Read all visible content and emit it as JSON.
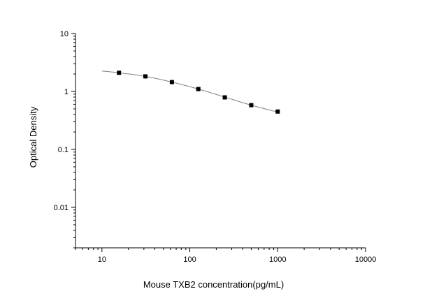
{
  "chart_data": {
    "type": "scatter",
    "title": "",
    "xlabel": "Mouse TXB2 concentration(pg/mL)",
    "ylabel": "Optical Density",
    "xscale": "log",
    "yscale": "log",
    "xlim": [
      5,
      10000
    ],
    "ylim": [
      0.002,
      10
    ],
    "x_ticks": [
      10,
      100,
      1000,
      10000
    ],
    "x_tick_labels": [
      "10",
      "100",
      "1000",
      "10000"
    ],
    "y_ticks": [
      0.01,
      0.1,
      1,
      10
    ],
    "y_tick_labels": [
      "0.01",
      "0.1",
      "1",
      "10"
    ],
    "grid": false,
    "legend": "none",
    "colors": {
      "marker": "#000000",
      "curve": "#808080",
      "axis": "#000000"
    },
    "series": [
      {
        "points": [
          {
            "x": 15.625,
            "y": 2.1
          },
          {
            "x": 31.25,
            "y": 1.82
          },
          {
            "x": 62.5,
            "y": 1.45
          },
          {
            "x": 125,
            "y": 1.1
          },
          {
            "x": 250,
            "y": 0.79
          },
          {
            "x": 500,
            "y": 0.58
          },
          {
            "x": 1000,
            "y": 0.45
          }
        ],
        "fit_curve": {
          "x_range": [
            10,
            1000
          ],
          "samples": [
            {
              "x": 10,
              "y": 2.25
            },
            {
              "x": 15.625,
              "y": 2.1
            },
            {
              "x": 31.25,
              "y": 1.82
            },
            {
              "x": 62.5,
              "y": 1.45
            },
            {
              "x": 125,
              "y": 1.1
            },
            {
              "x": 250,
              "y": 0.8
            },
            {
              "x": 500,
              "y": 0.58
            },
            {
              "x": 1000,
              "y": 0.44
            }
          ]
        }
      }
    ]
  }
}
